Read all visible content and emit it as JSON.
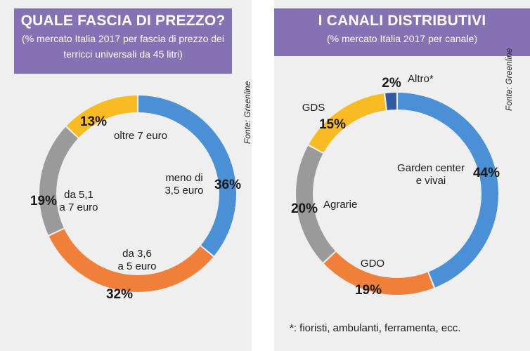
{
  "left_panel": {
    "title": "QUALE FASCIA DI PREZZO?",
    "subtitle": "(% mercato Italia 2017 per fascia di prezzo dei terricci universali da 45 litri)",
    "source": "Fonte: Greenline"
  },
  "right_panel": {
    "title": "I CANALI DISTRIBUTIVI",
    "subtitle": "(% mercato Italia 2017 per canale)",
    "source": "Fonte: Greenline",
    "footnote": "*:  fioristi, ambulanti, ferramenta, ecc."
  },
  "chart_data": [
    {
      "type": "pie",
      "title": "QUALE FASCIA DI PREZZO?",
      "subtitle": "(% mercato Italia 2017 per fascia di prezzo dei terricci universali da 45 litri)",
      "donut": true,
      "slices": [
        {
          "label": "meno di 3,5 euro",
          "label_lines": [
            "meno di",
            "3,5 euro"
          ],
          "value": 36,
          "pct_text": "36%",
          "color": "#4a90d6"
        },
        {
          "label": "da 3,6 a 5 euro",
          "label_lines": [
            "da 3,6",
            "a 5 euro"
          ],
          "value": 32,
          "pct_text": "32%",
          "color": "#f07f3a"
        },
        {
          "label": "da 5,1 a 7 euro",
          "label_lines": [
            "da 5,1",
            "a 7 euro"
          ],
          "value": 19,
          "pct_text": "19%",
          "color": "#9a9a9a"
        },
        {
          "label": "oltre 7 euro",
          "label_lines": [
            "oltre 7 euro"
          ],
          "value": 13,
          "pct_text": "13%",
          "color": "#f8bb22"
        }
      ]
    },
    {
      "type": "pie",
      "title": "I CANALI DISTRIBUTIVI",
      "subtitle": "(% mercato Italia 2017 per canale)",
      "donut": true,
      "slices": [
        {
          "label": "Garden center e vivai",
          "label_lines": [
            "Garden center",
            "e vivai"
          ],
          "value": 44,
          "pct_text": "44%",
          "color": "#4a90d6"
        },
        {
          "label": "GDO",
          "label_lines": [
            "GDO"
          ],
          "value": 19,
          "pct_text": "19%",
          "color": "#f07f3a"
        },
        {
          "label": "Agrarie",
          "label_lines": [
            "Agrarie"
          ],
          "value": 20,
          "pct_text": "20%",
          "color": "#9a9a9a"
        },
        {
          "label": "GDS",
          "label_lines": [
            "GDS"
          ],
          "value": 15,
          "pct_text": "15%",
          "color": "#f8bb22"
        },
        {
          "label": "Altro*",
          "label_lines": [
            "Altro*"
          ],
          "value": 2,
          "pct_text": "2%",
          "color": "#2f5c9e"
        }
      ]
    }
  ]
}
